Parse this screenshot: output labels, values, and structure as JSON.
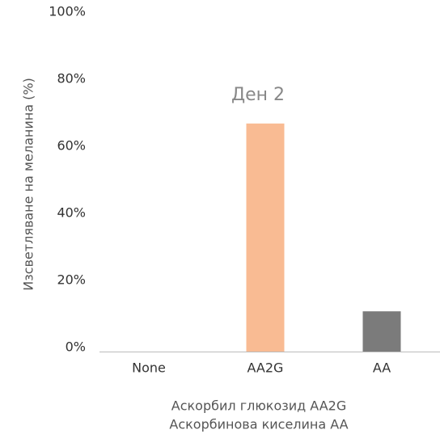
{
  "chart_data": {
    "type": "bar",
    "title": "Ден 2",
    "y_label": "Изсветляване на меланина (%)",
    "x_label": [
      "Аскорбил глюкозид AA2G",
      "Аскорбинова киселина AA"
    ],
    "categories": [
      "None",
      "AA2G",
      "AA"
    ],
    "values": [
      0,
      68,
      12
    ],
    "colors": [
      "#f9bb93",
      "#f9bb93",
      "#7b7b7b"
    ],
    "ylim": [
      0,
      100
    ],
    "yticks": [
      {
        "value": 0,
        "label": "0%"
      },
      {
        "value": 20,
        "label": "20%"
      },
      {
        "value": 40,
        "label": "40%"
      },
      {
        "value": 60,
        "label": "60%"
      },
      {
        "value": 80,
        "label": "80%"
      },
      {
        "value": 100,
        "label": "100%"
      }
    ],
    "grid": false
  }
}
